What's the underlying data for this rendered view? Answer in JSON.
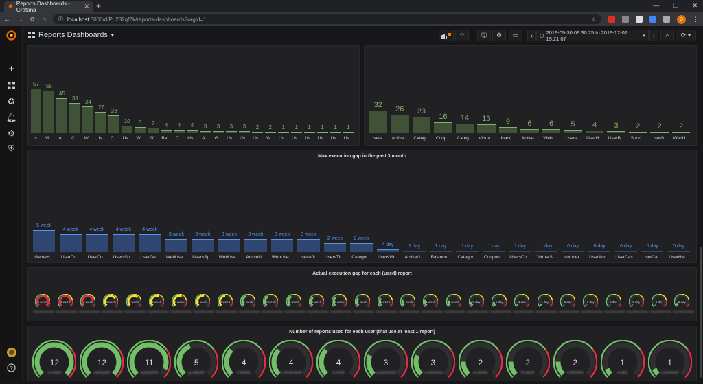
{
  "browser": {
    "tab_title": "Reports Dashboards - Grafana",
    "tab_close": "✕",
    "new_tab": "+",
    "url_host": "localhost",
    "url_path": ":3000/d/Pu282qfZk/reports-dashboards?orgId=1",
    "profile_initial": "D",
    "window_controls": [
      "—",
      "❐",
      "✕"
    ]
  },
  "topbar": {
    "dashboard_title": "Reports Dashboards",
    "title_caret": "▾",
    "time_range": "2019-09-30 09:30:25 to 2019-12-02 19:21:07",
    "colors": {
      "accent": "#eb7b18"
    }
  },
  "panel_left": {
    "chart_data": {
      "type": "bar",
      "categories": [
        "Us...",
        "Vi...",
        "A...",
        "C...",
        "W...",
        "Us...",
        "C...",
        "Us...",
        "W...",
        "W...",
        "Ba...",
        "C...",
        "Us...",
        "A...",
        "G...",
        "Us...",
        "Us...",
        "Us...",
        "W...",
        "Us...",
        "Us...",
        "Us...",
        "Us...",
        "Us...",
        "Us..."
      ],
      "values": [
        57,
        55,
        45,
        39,
        34,
        27,
        23,
        10,
        8,
        7,
        4,
        4,
        4,
        3,
        3,
        3,
        3,
        2,
        2,
        1,
        1,
        1,
        1,
        1,
        1
      ],
      "ylim": [
        0,
        60
      ],
      "color": "#3f5238",
      "label_color": "#7eb26d"
    }
  },
  "panel_right": {
    "chart_data": {
      "type": "bar",
      "categories": [
        "Users...",
        "Active...",
        "Categ...",
        "Coup...",
        "Categ...",
        "Virtua...",
        "Inacti...",
        "Active...",
        "WebU...",
        "Users...",
        "UserH...",
        "UserB...",
        "Sport...",
        "UserG...",
        "WebU..."
      ],
      "values": [
        32,
        26,
        23,
        16,
        14,
        13,
        9,
        6,
        6,
        5,
        4,
        3,
        2,
        2,
        2
      ],
      "ylim": [
        0,
        33
      ],
      "color": "#3f5238",
      "label_color": "#7eb26d"
    }
  },
  "panel_gap": {
    "title": "Max execution gap in the past 3 month",
    "chart_data": {
      "type": "bar",
      "categories": [
        "GameH...",
        "UserCo...",
        "UserCo...",
        "UsersSp...",
        "UserGe...",
        "WebUse...",
        "UsersSp...",
        "WebUse...",
        "ActiveU...",
        "WebUse...",
        "UsersVir...",
        "UsersTh...",
        "Categor...",
        "UsersVir...",
        "ActiveU...",
        "Balance...",
        "Categor...",
        "Coupon...",
        "UsersCo...",
        "VirtualS...",
        "Number...",
        "UserAcc...",
        "UserCas...",
        "UserCat...",
        "UserHie..."
      ],
      "labels": [
        "5 week",
        "4 week",
        "4 week",
        "4 week",
        "4 week",
        "3 week",
        "3 week",
        "3 week",
        "3 week",
        "3 week",
        "3 week",
        "2 week",
        "2 week",
        "4 day",
        "1 day",
        "1 day",
        "1 day",
        "1 day",
        "1 day",
        "1 day",
        "0 day",
        "0 day",
        "0 day",
        "0 day",
        "0 day"
      ],
      "values_days": [
        35,
        28,
        28,
        28,
        28,
        21,
        21,
        21,
        21,
        21,
        21,
        14,
        14,
        4,
        1,
        1,
        1,
        1,
        1,
        1,
        0,
        0,
        0,
        0,
        0
      ],
      "ylim": [
        0,
        35
      ],
      "color": "#2f4670",
      "label_color": "#5794f2"
    }
  },
  "panel_actual": {
    "title": "Actual execution gap for each (used) report",
    "gauges": [
      {
        "value": "6 week",
        "color": "#e02f44",
        "level": 1.0
      },
      {
        "value": "4 week",
        "color": "#e02f44",
        "level": 0.85
      },
      {
        "value": "4 week",
        "color": "#e02f44",
        "level": 0.8
      },
      {
        "value": "3 week",
        "color": "#fade2a",
        "level": 0.7
      },
      {
        "value": "3 week",
        "color": "#fade2a",
        "level": 0.65
      },
      {
        "value": "3 week",
        "color": "#fade2a",
        "level": 0.6
      },
      {
        "value": "3 week",
        "color": "#fade2a",
        "level": 0.6
      },
      {
        "value": "3 week",
        "color": "#fade2a",
        "level": 0.55
      },
      {
        "value": "2 week",
        "color": "#fade2a",
        "level": 0.5
      },
      {
        "value": "2 week",
        "color": "#73bf69",
        "level": 0.45
      },
      {
        "value": "2 week",
        "color": "#73bf69",
        "level": 0.4
      },
      {
        "value": "2 week",
        "color": "#73bf69",
        "level": 0.4
      },
      {
        "value": "2 week",
        "color": "#73bf69",
        "level": 0.35
      },
      {
        "value": "2 week",
        "color": "#73bf69",
        "level": 0.35
      },
      {
        "value": "1 week",
        "color": "#73bf69",
        "level": 0.3
      },
      {
        "value": "1 week",
        "color": "#73bf69",
        "level": 0.3
      },
      {
        "value": "1 week",
        "color": "#73bf69",
        "level": 0.25
      },
      {
        "value": "1 week",
        "color": "#73bf69",
        "level": 0.25
      },
      {
        "value": "1 week",
        "color": "#73bf69",
        "level": 0.2
      },
      {
        "value": "6 day",
        "color": "#73bf69",
        "level": 0.15
      },
      {
        "value": "6 day",
        "color": "#73bf69",
        "level": 0.15
      },
      {
        "value": "1 day",
        "color": "#73bf69",
        "level": 0.05
      },
      {
        "value": "1 day",
        "color": "#73bf69",
        "level": 0.05
      },
      {
        "value": "0 day",
        "color": "#73bf69",
        "level": 0.02
      },
      {
        "value": "0 day",
        "color": "#73bf69",
        "level": 0.02
      },
      {
        "value": "0 day",
        "color": "#73bf69",
        "level": 0.02
      },
      {
        "value": "0 day",
        "color": "#73bf69",
        "level": 0.02
      },
      {
        "value": "0 day",
        "color": "#73bf69",
        "level": 0.02
      },
      {
        "value": "5 day",
        "color": "#73bf69",
        "level": 0.1
      }
    ],
    "blurred_label": "ReportNameHidden"
  },
  "panel_users": {
    "title": "Number of reports used for each user (that use at least 1 report)",
    "gauges": [
      {
        "value": "12",
        "name": "a.ustan",
        "level": 1.0
      },
      {
        "value": "12",
        "name": "caesyuto",
        "level": 1.0
      },
      {
        "value": "11",
        "name": "a.jimyefst",
        "level": 0.92
      },
      {
        "value": "5",
        "name": "g.saljutm",
        "level": 0.42
      },
      {
        "value": "4",
        "name": "f.fodser",
        "level": 0.33
      },
      {
        "value": "4",
        "name": "f.simanasat",
        "level": 0.33
      },
      {
        "value": "4",
        "name": "o.rusts",
        "level": 0.33
      },
      {
        "value": "3",
        "name": "p.pastruzto",
        "level": 0.25
      },
      {
        "value": "3",
        "name": "c.cassinna",
        "level": 0.25
      },
      {
        "value": "2",
        "name": "a.sarbel",
        "level": 0.17
      },
      {
        "value": "2",
        "name": "m.atom",
        "level": 0.17
      },
      {
        "value": "2",
        "name": "s.fanrdos",
        "level": 0.17
      },
      {
        "value": "1",
        "name": "a.akd",
        "level": 0.08
      },
      {
        "value": "1",
        "name": "i.osarhian",
        "level": 0.08
      }
    ]
  }
}
